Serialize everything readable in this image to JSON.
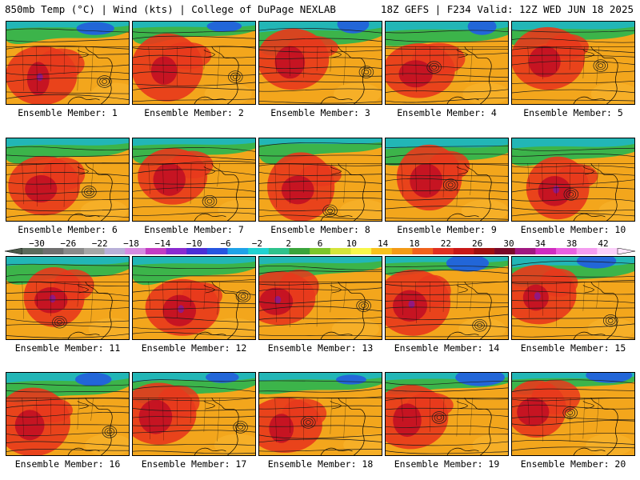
{
  "header": {
    "left": "850mb Temp (°C) | Wind (kts) | College of DuPage NEXLAB",
    "right": "18Z GEFS | F234 Valid: 12Z WED JUN 18 2025"
  },
  "members": [
    "Ensemble Member: 1",
    "Ensemble Member: 2",
    "Ensemble Member: 3",
    "Ensemble Member: 4",
    "Ensemble Member: 5",
    "Ensemble Member: 6",
    "Ensemble Member: 7",
    "Ensemble Member: 8",
    "Ensemble Member: 9",
    "Ensemble Member: 10",
    "Ensemble Member: 11",
    "Ensemble Member: 12",
    "Ensemble Member: 13",
    "Ensemble Member: 14",
    "Ensemble Member: 15",
    "Ensemble Member: 16",
    "Ensemble Member: 17",
    "Ensemble Member: 18",
    "Ensemble Member: 19",
    "Ensemble Member: 20"
  ],
  "colorbar": {
    "labels": [
      "−30",
      "−26",
      "−22",
      "−18",
      "−14",
      "−10",
      "−6",
      "−2",
      "2",
      "6",
      "10",
      "14",
      "18",
      "22",
      "26",
      "30",
      "34",
      "38",
      "42"
    ],
    "colors": [
      "#5c6b5c",
      "#6f6f6f",
      "#8a8a8a",
      "#a6a6a6",
      "#b8b0d8",
      "#d58be0",
      "#c33cc3",
      "#8a2bd0",
      "#4b2fd6",
      "#2656e0",
      "#1fa2e8",
      "#20d2d2",
      "#2ec28c",
      "#3aa43c",
      "#7cc62c",
      "#d4e43a",
      "#f7f74a",
      "#f6c21c",
      "#f39a16",
      "#f0621c",
      "#e03020",
      "#c81818",
      "#a01010",
      "#7a0a2a",
      "#a01880",
      "#d02cc0",
      "#e860e0",
      "#f49cf0",
      "#fbd0fa"
    ]
  },
  "palette": {
    "cold": "#2266d8",
    "cool": "#22b6b6",
    "mild": "#3cb44a",
    "warm": "#f3a61c",
    "hot": "#e8381c",
    "extreme": "#c21024",
    "hottest": "#8c1a8c"
  }
}
